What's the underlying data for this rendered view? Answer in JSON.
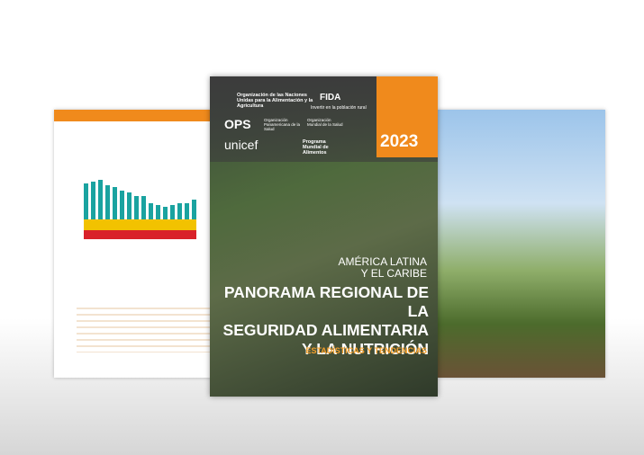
{
  "cover": {
    "logos": {
      "fao": "Organización de las Naciones Unidas para la Alimentación y la Agricultura",
      "fida": "FIDA",
      "fida_tagline": "Invertir en la población rural",
      "ops": "OPS",
      "ops_sub": "Organización Panamericana de la Salud",
      "oms": "Organización Mundial de la Salud",
      "unicef": "unicef",
      "wfp": "Programa Mundial de Alimentos"
    },
    "year": "2023",
    "region_lines": [
      "AMÉRICA LATINA",
      "Y EL CARIBE"
    ],
    "title_lines": [
      "PANORAMA REGIONAL DE LA",
      "SEGURIDAD ALIMENTARIA",
      "Y LA NUTRICIÓN"
    ],
    "subtitle": "ESTADÍSTICAS Y TENDENCIAS"
  }
}
